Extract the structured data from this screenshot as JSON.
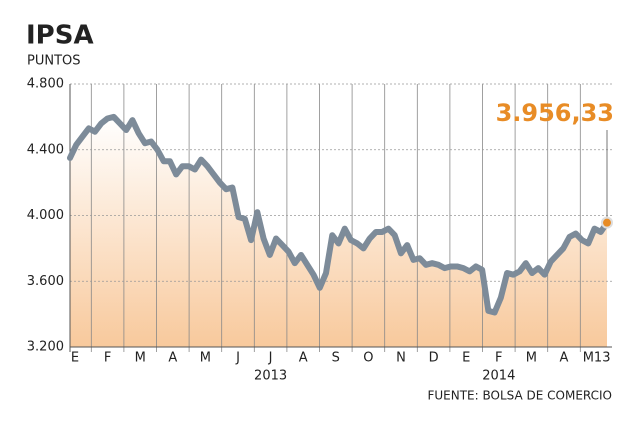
{
  "chart_data": {
    "type": "line",
    "title": "IPSA",
    "subtitle": "PUNTOS",
    "color": "#7d8b99",
    "fill_color": "#f8c99c",
    "accent_color": "#e88c26",
    "ylim": [
      3200,
      4800
    ],
    "yticks": [
      {
        "value": 3200,
        "label": "3.200"
      },
      {
        "value": 3600,
        "label": "3.600"
      },
      {
        "value": 4000,
        "label": "4.000"
      },
      {
        "value": 4400,
        "label": "4.400"
      },
      {
        "value": 4800,
        "label": "4.800"
      }
    ],
    "grid": true,
    "month_labels": [
      "E",
      "F",
      "M",
      "A",
      "M",
      "J",
      "J",
      "A",
      "S",
      "O",
      "N",
      "D",
      "E",
      "F",
      "M",
      "A",
      "M13"
    ],
    "year_labels": [
      {
        "label": "2013",
        "month": 6
      },
      {
        "label": "2014",
        "month": 13
      }
    ],
    "annotation": "3.956,33",
    "source": "FUENTE: BOLSA DE COMERCIO",
    "values": [
      4350,
      4430,
      4480,
      4530,
      4510,
      4560,
      4590,
      4600,
      4560,
      4520,
      4580,
      4500,
      4440,
      4450,
      4400,
      4330,
      4330,
      4250,
      4300,
      4300,
      4280,
      4340,
      4300,
      4250,
      4200,
      4160,
      4170,
      3990,
      3980,
      3850,
      4020,
      3860,
      3760,
      3860,
      3820,
      3780,
      3710,
      3760,
      3700,
      3640,
      3560,
      3650,
      3880,
      3830,
      3920,
      3850,
      3830,
      3800,
      3860,
      3900,
      3900,
      3920,
      3880,
      3770,
      3820,
      3730,
      3740,
      3700,
      3710,
      3700,
      3680,
      3690,
      3690,
      3680,
      3660,
      3690,
      3670,
      3420,
      3410,
      3500,
      3650,
      3640,
      3660,
      3710,
      3650,
      3680,
      3640,
      3720,
      3760,
      3800,
      3870,
      3890,
      3850,
      3830,
      3920,
      3900,
      3956.33
    ]
  }
}
